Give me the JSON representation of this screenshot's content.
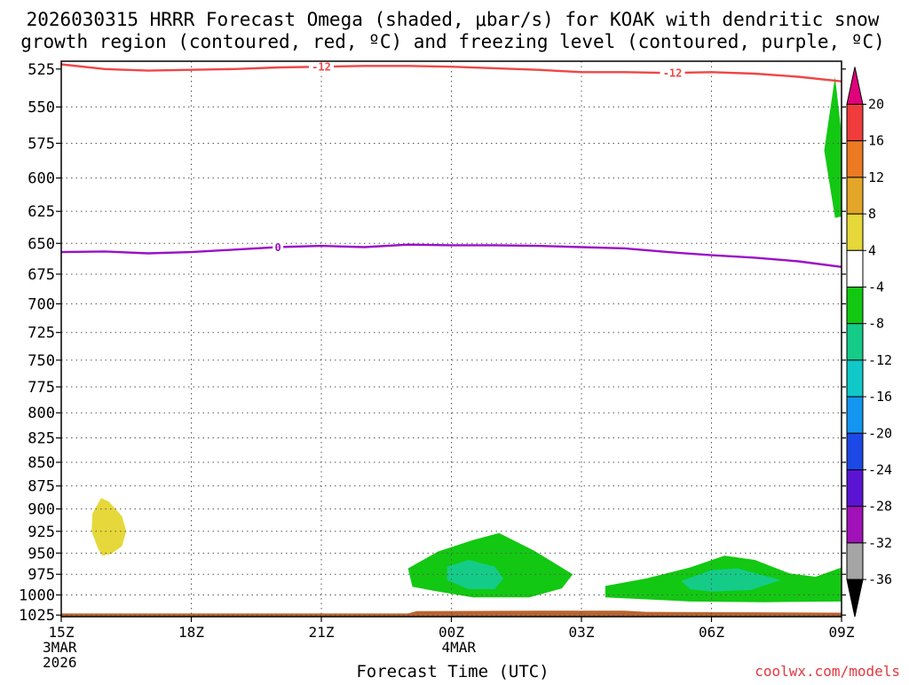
{
  "title": {
    "line1": "2026030315 HRRR Forecast Omega (shaded, μbar/s) for KOAK with dendritic snow",
    "line2": "growth region (contoured, red, ºC) and freezing level (contoured, purple, ºC)"
  },
  "credit": "coolwx.com/models",
  "chart_data": {
    "type": "heatmap",
    "title": "2026030315 HRRR Forecast Omega (shaded, μbar/s) for KOAK with dendritic snow growth region (contoured, red, ºC) and freezing level (contoured, purple, ºC)",
    "xlabel": "Forecast Time (UTC)",
    "ylabel": "",
    "x_ticks": [
      {
        "label": "15Z",
        "sub": [
          "3MAR",
          "2026"
        ],
        "hour": 0
      },
      {
        "label": "18Z",
        "sub": [],
        "hour": 3
      },
      {
        "label": "21Z",
        "sub": [],
        "hour": 6
      },
      {
        "label": "00Z",
        "sub": [
          "4MAR"
        ],
        "hour": 9
      },
      {
        "label": "03Z",
        "sub": [],
        "hour": 12
      },
      {
        "label": "06Z",
        "sub": [],
        "hour": 15
      },
      {
        "label": "09Z",
        "sub": [],
        "hour": 18
      }
    ],
    "xlim": [
      0,
      18
    ],
    "y_ticks": [
      525,
      550,
      575,
      600,
      625,
      650,
      675,
      700,
      725,
      750,
      775,
      800,
      825,
      850,
      875,
      900,
      925,
      950,
      975,
      1000,
      1025
    ],
    "ylim": [
      1027,
      520
    ],
    "y_scale": "log-pressure",
    "grid": true,
    "colorbar": {
      "ticks": [
        20,
        16,
        12,
        8,
        4,
        -4,
        -8,
        -12,
        -16,
        -20,
        -24,
        -28,
        -32,
        -36
      ],
      "bins": [
        {
          "from": 20,
          "to": 99,
          "color": "#e0007a"
        },
        {
          "from": 16,
          "to": 20,
          "color": "#f03c3c"
        },
        {
          "from": 12,
          "to": 16,
          "color": "#ec7a22"
        },
        {
          "from": 8,
          "to": 12,
          "color": "#e3a629"
        },
        {
          "from": 4,
          "to": 8,
          "color": "#e6d83a"
        },
        {
          "from": -4,
          "to": 4,
          "color": "#ffffff"
        },
        {
          "from": -8,
          "to": -4,
          "color": "#12c812"
        },
        {
          "from": -12,
          "to": -8,
          "color": "#14cc88"
        },
        {
          "from": -16,
          "to": -12,
          "color": "#10c8c8"
        },
        {
          "from": -20,
          "to": -16,
          "color": "#1496f0"
        },
        {
          "from": -24,
          "to": -20,
          "color": "#1c48e6"
        },
        {
          "from": -28,
          "to": -24,
          "color": "#5a14d2"
        },
        {
          "from": -32,
          "to": -28,
          "color": "#a012b8"
        },
        {
          "from": -36,
          "to": -32,
          "color": "#a5a5a5"
        },
        {
          "from": -99,
          "to": -36,
          "color": "#000000"
        }
      ]
    },
    "omega_regions": [
      {
        "color": "#e6d83a",
        "points": [
          [
            0.92,
            888
          ],
          [
            1.1,
            892
          ],
          [
            1.4,
            908
          ],
          [
            1.5,
            925
          ],
          [
            1.4,
            942
          ],
          [
            1.15,
            951
          ],
          [
            0.95,
            953
          ],
          [
            0.85,
            945
          ],
          [
            0.7,
            925
          ],
          [
            0.72,
            905
          ]
        ]
      },
      {
        "color": "#12c812",
        "points": [
          [
            17.85,
            530
          ],
          [
            18.1,
            568
          ],
          [
            18.3,
            608
          ],
          [
            18.3,
            629
          ],
          [
            17.85,
            630
          ],
          [
            17.6,
            580
          ]
        ]
      },
      {
        "color": "#12c812",
        "points": [
          [
            8.0,
            968
          ],
          [
            8.7,
            948
          ],
          [
            9.5,
            935
          ],
          [
            10.1,
            927
          ],
          [
            10.9,
            947
          ],
          [
            11.8,
            975
          ],
          [
            11.55,
            992
          ],
          [
            10.8,
            1003
          ],
          [
            9.5,
            1003
          ],
          [
            8.6,
            995
          ],
          [
            8.1,
            990
          ]
        ]
      },
      {
        "color": "#14cc88",
        "points": [
          [
            8.9,
            966
          ],
          [
            9.4,
            958
          ],
          [
            10.0,
            966
          ],
          [
            10.2,
            980
          ],
          [
            10.0,
            993
          ],
          [
            9.4,
            993
          ],
          [
            8.9,
            982
          ]
        ]
      },
      {
        "color": "#12c812",
        "points": [
          [
            12.55,
            989
          ],
          [
            13.5,
            980
          ],
          [
            14.5,
            967
          ],
          [
            15.3,
            953
          ],
          [
            16.0,
            958
          ],
          [
            16.8,
            974
          ],
          [
            17.4,
            978
          ],
          [
            18.0,
            967
          ],
          [
            18.0,
            1008
          ],
          [
            16.2,
            1009
          ],
          [
            14.5,
            1008
          ],
          [
            12.55,
            1003
          ]
        ]
      },
      {
        "color": "#14cc88",
        "points": [
          [
            14.3,
            983
          ],
          [
            15.0,
            970
          ],
          [
            15.6,
            968
          ],
          [
            16.6,
            982
          ],
          [
            15.9,
            994
          ],
          [
            15.0,
            996
          ],
          [
            14.5,
            993
          ]
        ]
      }
    ],
    "surface": {
      "color": "#b9642f",
      "bottom_hpa": 1027,
      "points": [
        [
          0,
          1023
        ],
        [
          8,
          1023
        ],
        [
          8.2,
          1020
        ],
        [
          11,
          1019.5
        ],
        [
          13,
          1019.5
        ],
        [
          13.5,
          1021
        ],
        [
          18,
          1022
        ]
      ]
    },
    "series": [
      {
        "name": "-12",
        "color": "#f04646",
        "x": [
          0,
          1,
          2,
          3,
          4,
          5,
          6,
          7,
          8,
          9,
          10,
          11,
          12,
          13,
          14,
          15,
          16,
          17,
          18
        ],
        "y": [
          522,
          525,
          526,
          525.5,
          525,
          524,
          523.5,
          523,
          523,
          523.5,
          524.5,
          525.5,
          527,
          527,
          527.5,
          527,
          528,
          530,
          533
        ],
        "labels": [
          {
            "text": "-12",
            "x": 6
          },
          {
            "text": "-12",
            "x": 14.1
          }
        ]
      },
      {
        "name": "0",
        "color": "#9a10c8",
        "x": [
          0,
          1,
          2,
          3,
          4,
          5,
          6,
          7,
          8,
          9,
          10,
          11,
          12,
          13,
          14,
          15,
          16,
          17,
          18
        ],
        "y": [
          657,
          656.5,
          658,
          657,
          655,
          653,
          652,
          653,
          651,
          651.5,
          651.5,
          652,
          653,
          654,
          657,
          659.5,
          661.5,
          664.5,
          669
        ],
        "labels": [
          {
            "text": "0",
            "x": 5
          }
        ]
      }
    ]
  }
}
